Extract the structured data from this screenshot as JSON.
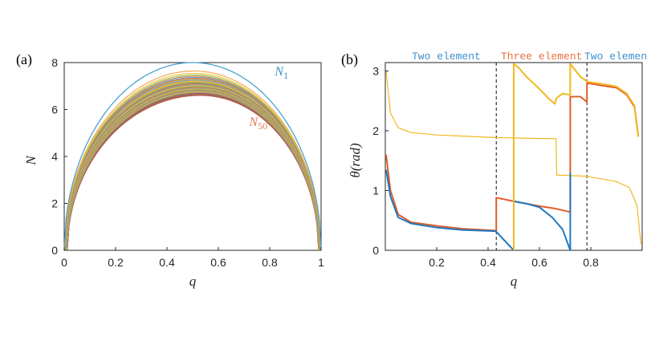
{
  "chart_data": [
    {
      "type": "line",
      "panel_label": "(a)",
      "xlabel": "q",
      "ylabel": "N",
      "xlim": [
        0,
        1
      ],
      "ylim": [
        0,
        8
      ],
      "xticks": [
        0,
        0.2,
        0.4,
        0.6,
        0.8,
        1
      ],
      "xtick_labels": [
        "0",
        "0.2",
        "0.4",
        "0.6",
        "0.8",
        "1"
      ],
      "yticks": [
        0,
        2,
        4,
        6,
        8
      ],
      "ytick_labels": [
        "0",
        "2",
        "4",
        "6",
        "8"
      ],
      "grid": false,
      "series_count": 50,
      "peaks": {
        "first": 8.0,
        "last": 6.6,
        "first_peak_q": 0.5,
        "last_peak_q": 0.53
      },
      "annotations": [
        {
          "text_main": "N",
          "text_sub": "1",
          "color": "#3c8fc4",
          "q": 0.82,
          "N": 7.45
        },
        {
          "text_main": "N",
          "text_sub": "50",
          "color": "#e07b4f",
          "q": 0.72,
          "N": 5.3
        }
      ],
      "colors": {
        "first": "#4aa2d4",
        "last": "#c15a3a"
      }
    },
    {
      "type": "line",
      "panel_label": "(b)",
      "xlabel": "q",
      "ylabel": "θ(rad)",
      "xlim": [
        0,
        1
      ],
      "ylim": [
        0,
        3.14
      ],
      "xticks": [
        0.2,
        0.4,
        0.6,
        0.8
      ],
      "xtick_labels": [
        "0.2",
        "0.4",
        "0.6",
        "0.8"
      ],
      "yticks": [
        0,
        1,
        2,
        3
      ],
      "ytick_labels": [
        "0",
        "1",
        "2",
        "3"
      ],
      "grid": false,
      "vlines": [
        0.432,
        0.785
      ],
      "region_labels": [
        {
          "text": "Two element",
          "color": "#3b8fd0"
        },
        {
          "text": "Three element",
          "color": "#ea6e3f"
        },
        {
          "text": "Two element",
          "color": "#3b8fd0"
        }
      ],
      "series": [
        {
          "color": "#f2b722",
          "points": [
            [
              0.003,
              3.0
            ],
            [
              0.02,
              2.3
            ],
            [
              0.05,
              2.05
            ],
            [
              0.1,
              1.97
            ],
            [
              0.2,
              1.93
            ],
            [
              0.3,
              1.91
            ],
            [
              0.43,
              1.885
            ],
            [
              0.5,
              1.88
            ],
            [
              0.55,
              1.875
            ],
            [
              0.6,
              1.87
            ],
            [
              0.64,
              1.87
            ],
            [
              0.665,
              1.865
            ],
            [
              0.667,
              1.26
            ],
            [
              0.78,
              1.24
            ],
            [
              0.9,
              1.15
            ],
            [
              0.95,
              1.05
            ],
            [
              0.98,
              0.75
            ],
            [
              0.995,
              0.1
            ]
          ]
        },
        {
          "color": "#df5d29",
          "points": [
            [
              0.003,
              1.6
            ],
            [
              0.02,
              1.0
            ],
            [
              0.05,
              0.6
            ],
            [
              0.1,
              0.47
            ],
            [
              0.2,
              0.41
            ],
            [
              0.3,
              0.36
            ],
            [
              0.43,
              0.33
            ],
            [
              0.432,
              0.33
            ],
            [
              0.432,
              0.88
            ],
            [
              0.5,
              0.82
            ],
            [
              0.6,
              0.74
            ],
            [
              0.66,
              0.7
            ],
            [
              0.72,
              0.64
            ],
            [
              0.72,
              2.57
            ],
            [
              0.76,
              2.57
            ],
            [
              0.785,
              2.48
            ],
            [
              0.785,
              2.8
            ],
            [
              0.85,
              2.75
            ],
            [
              0.9,
              2.72
            ],
            [
              0.94,
              2.6
            ],
            [
              0.97,
              2.4
            ],
            [
              0.985,
              1.9
            ]
          ]
        },
        {
          "color": "#1f78c1",
          "points": [
            [
              0.003,
              1.35
            ],
            [
              0.02,
              0.9
            ],
            [
              0.05,
              0.55
            ],
            [
              0.1,
              0.45
            ],
            [
              0.2,
              0.38
            ],
            [
              0.3,
              0.34
            ],
            [
              0.43,
              0.32
            ],
            [
              0.5,
              0.0
            ],
            [
              0.5,
              0.82
            ],
            [
              0.55,
              0.78
            ],
            [
              0.6,
              0.72
            ],
            [
              0.65,
              0.55
            ],
            [
              0.69,
              0.35
            ],
            [
              0.72,
              0.0
            ],
            [
              0.72,
              1.3
            ]
          ]
        },
        {
          "color": "#f2b722",
          "points": [
            [
              0.5,
              0.0
            ],
            [
              0.5,
              3.12
            ],
            [
              0.52,
              3.05
            ],
            [
              0.55,
              2.9
            ],
            [
              0.6,
              2.7
            ],
            [
              0.64,
              2.52
            ],
            [
              0.66,
              2.45
            ],
            [
              0.667,
              2.55
            ],
            [
              0.69,
              2.62
            ],
            [
              0.72,
              2.6
            ],
            [
              0.72,
              3.12
            ],
            [
              0.76,
              2.9
            ],
            [
              0.785,
              2.83
            ],
            [
              0.785,
              2.82
            ],
            [
              0.85,
              2.78
            ],
            [
              0.9,
              2.74
            ],
            [
              0.94,
              2.62
            ],
            [
              0.97,
              2.42
            ],
            [
              0.985,
              1.9
            ]
          ]
        }
      ]
    }
  ]
}
